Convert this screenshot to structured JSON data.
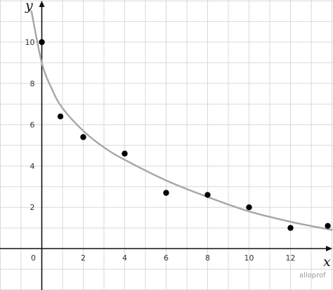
{
  "chart_data": {
    "type": "scatter",
    "xlabel": "x",
    "ylabel": "y",
    "xlim": [
      -1,
      14
    ],
    "ylim": [
      -2,
      12
    ],
    "grid": true,
    "x_ticks": [
      0,
      2,
      4,
      6,
      8,
      10,
      12
    ],
    "y_ticks": [
      2,
      4,
      6,
      8,
      10
    ],
    "series": [
      {
        "points": [
          {
            "x": 0,
            "y": 10
          },
          {
            "x": 0.9,
            "y": 6.4
          },
          {
            "x": 2,
            "y": 5.4
          },
          {
            "x": 4,
            "y": 4.6
          },
          {
            "x": 6,
            "y": 2.7
          },
          {
            "x": 8,
            "y": 2.6
          },
          {
            "x": 10,
            "y": 2.0
          },
          {
            "x": 12,
            "y": 1.0
          },
          {
            "x": 13.8,
            "y": 1.1
          }
        ]
      }
    ],
    "trend_curve": [
      {
        "x": -0.5,
        "y": 11.5
      },
      {
        "x": 0,
        "y": 9.0
      },
      {
        "x": 0.5,
        "y": 7.7
      },
      {
        "x": 1,
        "y": 6.8
      },
      {
        "x": 2,
        "y": 5.7
      },
      {
        "x": 3,
        "y": 4.9
      },
      {
        "x": 4,
        "y": 4.3
      },
      {
        "x": 6,
        "y": 3.3
      },
      {
        "x": 8,
        "y": 2.5
      },
      {
        "x": 10,
        "y": 1.8
      },
      {
        "x": 12,
        "y": 1.3
      },
      {
        "x": 14,
        "y": 0.9
      }
    ],
    "colors": {
      "points": "#000000",
      "curve": "#a6a6a6",
      "grid": "#d9d9d9",
      "axes": "#111111"
    }
  },
  "watermark": "alloprof"
}
